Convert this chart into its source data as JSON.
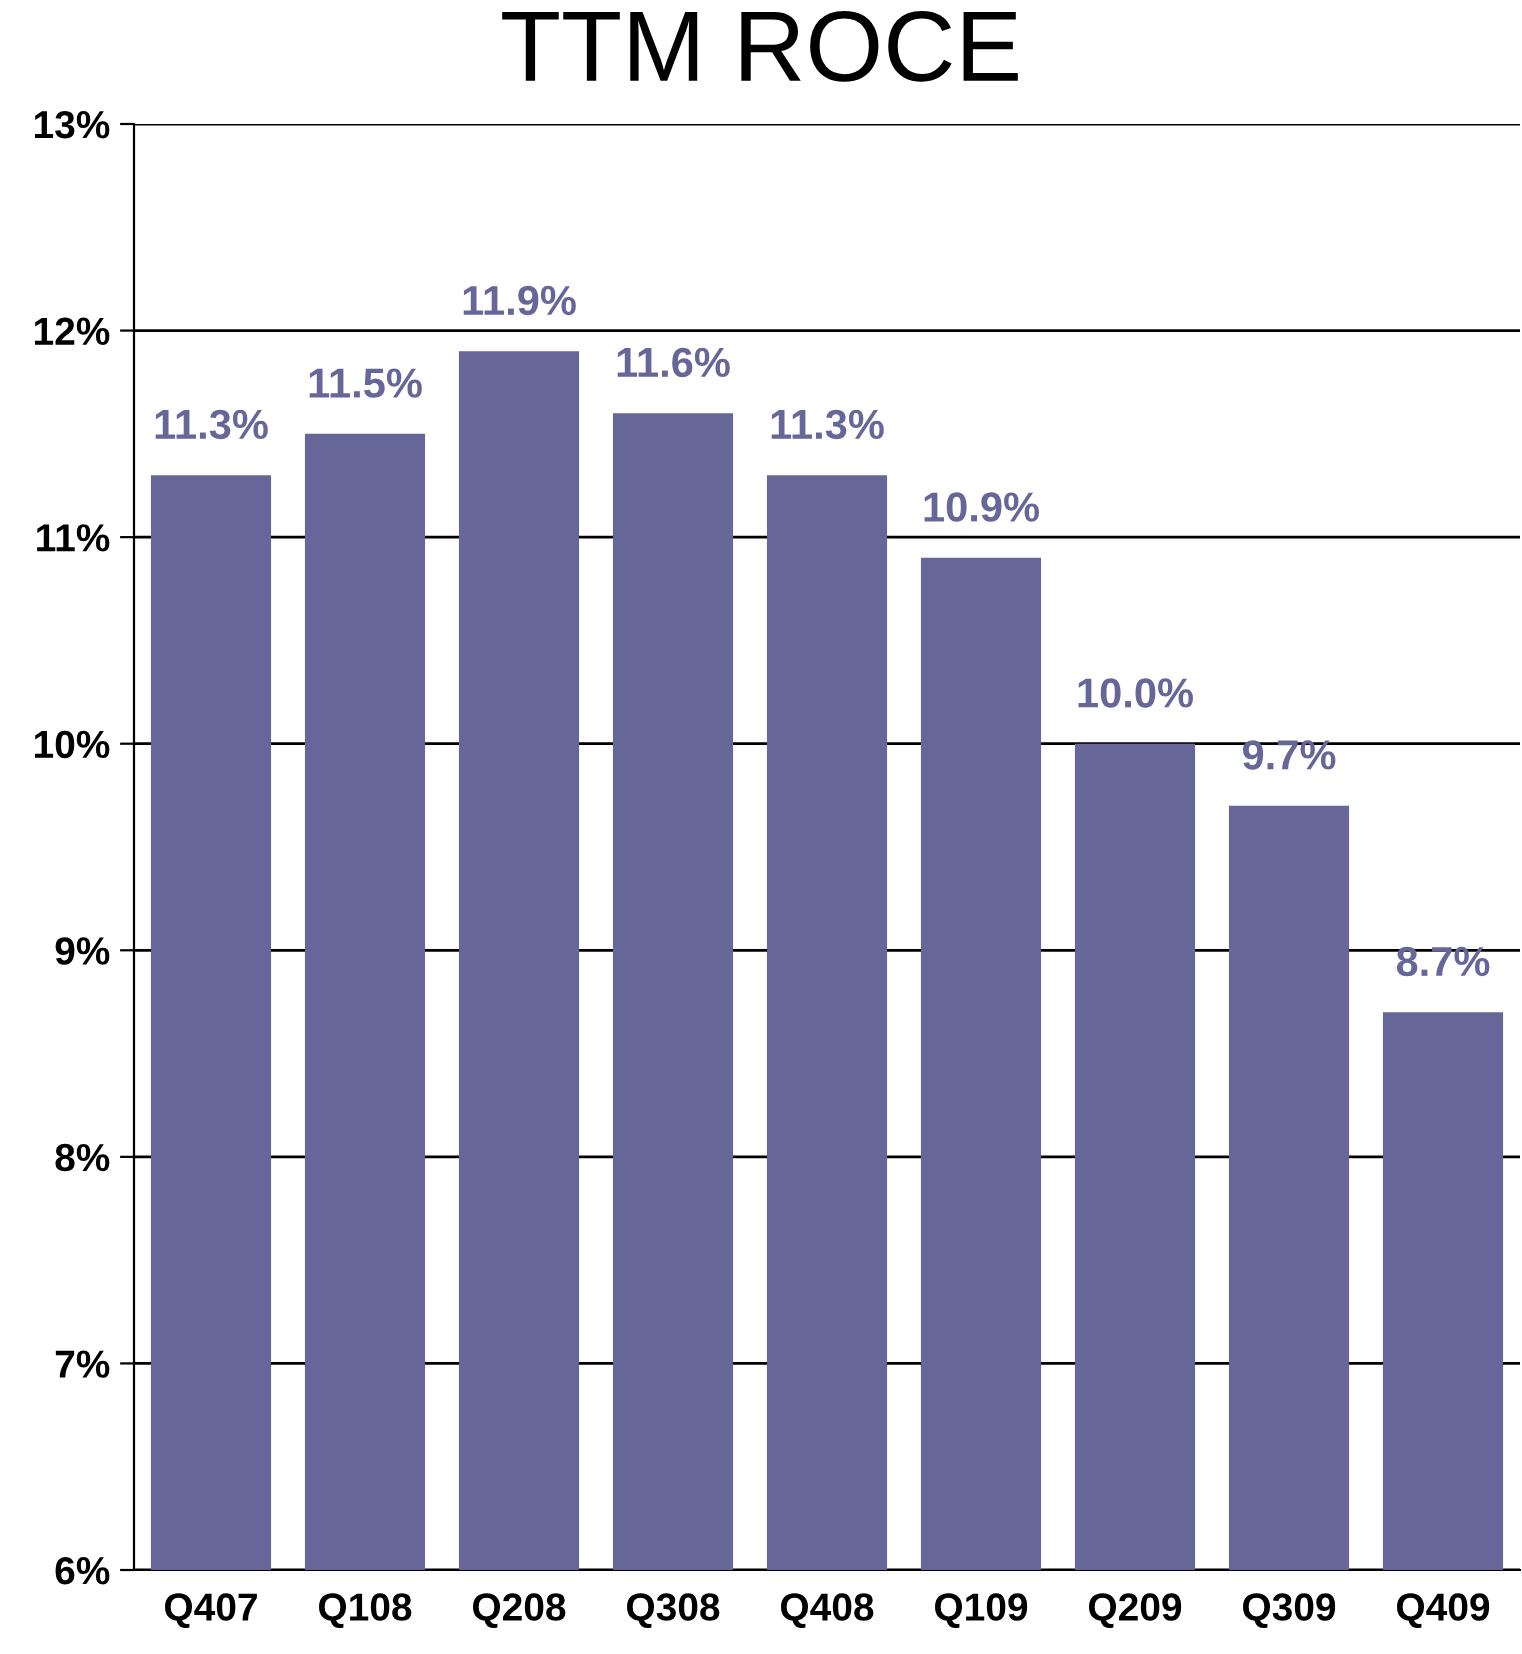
{
  "chart_data": {
    "type": "bar",
    "title": "TTM ROCE",
    "categories": [
      "Q407",
      "Q108",
      "Q208",
      "Q308",
      "Q408",
      "Q109",
      "Q209",
      "Q309",
      "Q409"
    ],
    "values": [
      11.3,
      11.5,
      11.9,
      11.6,
      11.3,
      10.9,
      10.0,
      9.7,
      8.7
    ],
    "value_labels": [
      "11.3%",
      "11.5%",
      "11.9%",
      "11.6%",
      "11.3%",
      "10.9%",
      "10.0%",
      "9.7%",
      "8.7%"
    ],
    "color": "#666699",
    "ylim": [
      6,
      13
    ],
    "yticks": [
      {
        "value": 6,
        "label": "6%"
      },
      {
        "value": 7,
        "label": "7%"
      },
      {
        "value": 8,
        "label": "8%"
      },
      {
        "value": 9,
        "label": "9%"
      },
      {
        "value": 10,
        "label": "10%"
      },
      {
        "value": 11,
        "label": "11%"
      },
      {
        "value": 12,
        "label": "12%"
      },
      {
        "value": 13,
        "label": "13%"
      }
    ],
    "grid": "y"
  }
}
